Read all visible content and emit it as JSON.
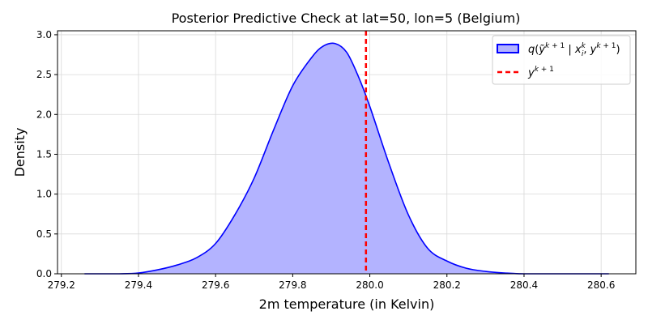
{
  "chart_data": {
    "type": "area",
    "title": "Posterior Predictive Check at lat=50, lon=5 (Belgium)",
    "xlabel": "2m temperature (in Kelvin)",
    "ylabel": "Density",
    "xlim": [
      279.19,
      280.69
    ],
    "ylim": [
      0,
      3.05
    ],
    "xticks": [
      279.2,
      279.4,
      279.6,
      279.8,
      280.0,
      280.2,
      280.4,
      280.6
    ],
    "xtick_labels": [
      "279.2",
      "279.4",
      "279.6",
      "279.8",
      "280.0",
      "280.2",
      "280.4",
      "280.6"
    ],
    "yticks": [
      0.0,
      0.5,
      1.0,
      1.5,
      2.0,
      2.5,
      3.0
    ],
    "ytick_labels": [
      "0.0",
      "0.5",
      "1.0",
      "1.5",
      "2.0",
      "2.5",
      "3.0"
    ],
    "grid": true,
    "legend_position": "top-right",
    "series": [
      {
        "name": "q(ỹ^{k+1} | x_i^k, y^{k+1})",
        "kind": "density",
        "line_color": "#0000ff",
        "fill_color": "#b3b3ff",
        "x": [
          279.26,
          279.3,
          279.35,
          279.4,
          279.45,
          279.5,
          279.55,
          279.6,
          279.65,
          279.7,
          279.75,
          279.8,
          279.85,
          279.88,
          279.91,
          279.94,
          279.97,
          280.0,
          280.05,
          280.1,
          280.15,
          280.2,
          280.25,
          280.3,
          280.35,
          280.4,
          280.5,
          280.62
        ],
        "y": [
          0.0,
          0.0,
          0.0,
          0.01,
          0.05,
          0.11,
          0.2,
          0.38,
          0.74,
          1.2,
          1.8,
          2.36,
          2.72,
          2.86,
          2.89,
          2.78,
          2.48,
          2.1,
          1.38,
          0.74,
          0.32,
          0.16,
          0.07,
          0.03,
          0.01,
          0.0,
          0.0,
          0.0
        ]
      },
      {
        "name": "y^{k+1}",
        "kind": "vline",
        "x": 279.99,
        "line_color": "#ff0000",
        "style": "dashed"
      }
    ]
  }
}
